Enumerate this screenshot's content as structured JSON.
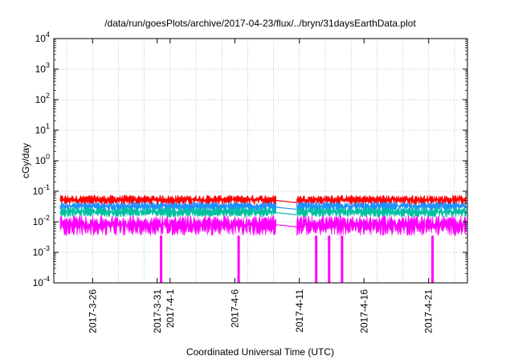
{
  "chart_data": {
    "type": "line",
    "title": "/data/run/goesPlots/archive/2017-04-23/flux/../bryn/31daysEarthData.plot",
    "xlabel": "Coordinated Universal Time (UTC)",
    "ylabel": "cGy/day",
    "yscale": "log",
    "ylim": [
      0.0001,
      10000
    ],
    "yticks": [
      {
        "value": 0.0001,
        "base": "10",
        "exp": "-4"
      },
      {
        "value": 0.001,
        "base": "10",
        "exp": "-3"
      },
      {
        "value": 0.01,
        "base": "10",
        "exp": "-2"
      },
      {
        "value": 0.1,
        "base": "10",
        "exp": "-1"
      },
      {
        "value": 1,
        "base": "10",
        "exp": "0"
      },
      {
        "value": 10,
        "base": "10",
        "exp": "1"
      },
      {
        "value": 100,
        "base": "10",
        "exp": "2"
      },
      {
        "value": 1000,
        "base": "10",
        "exp": "3"
      },
      {
        "value": 10000,
        "base": "10",
        "exp": "4"
      }
    ],
    "xlim": [
      "2017-03-23",
      "2017-04-24"
    ],
    "xticks": [
      "2017-3-26",
      "2017-3-31",
      "2017-4-1",
      "2017-4-6",
      "2017-4-11",
      "2017-4-16",
      "2017-4-21"
    ],
    "x_grid_dates": [
      "2017-03-24",
      "2017-03-26",
      "2017-03-28",
      "2017-03-30",
      "2017-04-01",
      "2017-04-03",
      "2017-04-05",
      "2017-04-07",
      "2017-04-09",
      "2017-04-11",
      "2017-04-13",
      "2017-04-15",
      "2017-04-17",
      "2017-04-19",
      "2017-04-21",
      "2017-04-23"
    ],
    "grid": true,
    "data_gap": [
      "2017-04-09",
      "2017-04-10"
    ],
    "dropouts": [
      "2017-03-31",
      "2017-04-06",
      "2017-04-12",
      "2017-04-13",
      "2017-04-14",
      "2017-04-21"
    ],
    "series": [
      {
        "color": "#ff0000",
        "level": 0.05,
        "low": 0.035,
        "high": 0.075
      },
      {
        "color": "#1e90ff",
        "level": 0.03,
        "low": 0.022,
        "high": 0.045
      },
      {
        "color": "#00c0a0",
        "level": 0.02,
        "low": 0.014,
        "high": 0.03
      },
      {
        "color": "#ff00ff",
        "level": 0.008,
        "low": 0.0035,
        "high": 0.016
      }
    ]
  }
}
